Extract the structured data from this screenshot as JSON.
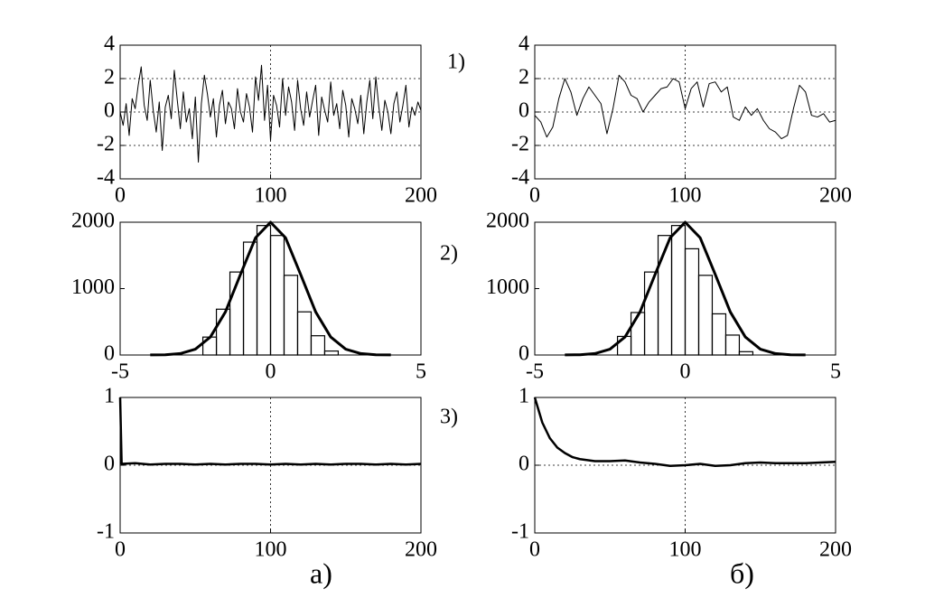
{
  "chart_data": [
    {
      "type": "line",
      "color": "#000000",
      "line_width": 1,
      "grid": true,
      "x": [
        0,
        2,
        4,
        6,
        8,
        10,
        12,
        14,
        16,
        18,
        20,
        22,
        24,
        26,
        28,
        30,
        32,
        34,
        36,
        38,
        40,
        42,
        44,
        46,
        48,
        50,
        52,
        54,
        56,
        58,
        60,
        62,
        64,
        66,
        68,
        70,
        72,
        74,
        76,
        78,
        80,
        82,
        84,
        86,
        88,
        90,
        92,
        94,
        96,
        98,
        100,
        102,
        104,
        106,
        108,
        110,
        112,
        114,
        116,
        118,
        120,
        122,
        124,
        126,
        128,
        130,
        132,
        134,
        136,
        138,
        140,
        142,
        144,
        146,
        148,
        150,
        152,
        154,
        156,
        158,
        160,
        162,
        164,
        166,
        168,
        170,
        172,
        174,
        176,
        178,
        180,
        182,
        184,
        186,
        188,
        190,
        192,
        194,
        196,
        198,
        200
      ],
      "y": [
        0.0,
        -0.8,
        0.5,
        -1.4,
        0.8,
        0.2,
        1.6,
        2.7,
        0.4,
        -0.5,
        1.9,
        0.1,
        -1.2,
        0.6,
        -2.3,
        0.3,
        1.0,
        -0.4,
        2.5,
        0.7,
        -1.0,
        1.2,
        -0.6,
        0.2,
        -1.6,
        0.9,
        -3.0,
        0.5,
        2.2,
        1.1,
        -0.3,
        0.8,
        -1.5,
        0.4,
        1.3,
        -0.7,
        0.6,
        0.2,
        -1.0,
        1.4,
        0.0,
        -0.6,
        1.1,
        0.3,
        -1.2,
        2.1,
        0.7,
        2.8,
        -0.5,
        1.6,
        -1.7,
        1.0,
        0.4,
        -0.9,
        2.0,
        -0.2,
        1.5,
        0.6,
        -1.1,
        1.9,
        0.2,
        -0.8,
        1.2,
        -0.3,
        0.7,
        1.6,
        -1.4,
        0.9,
        0.1,
        -0.6,
        1.8,
        -0.2,
        0.5,
        -1.0,
        1.3,
        0.4,
        -1.5,
        0.8,
        0.2,
        -0.7,
        1.0,
        -1.3,
        0.6,
        1.9,
        -0.4,
        2.1,
        0.3,
        -1.1,
        0.7,
        0.0,
        -1.3,
        0.5,
        1.2,
        -0.6,
        0.4,
        1.6,
        -0.9,
        0.3,
        -0.2,
        0.6,
        0.1
      ],
      "xlim": [
        0,
        200
      ],
      "ylim": [
        -4,
        4
      ],
      "xticks": [
        0,
        100,
        200
      ],
      "yticks": [
        -4,
        -2,
        0,
        2,
        4
      ]
    },
    {
      "type": "line",
      "color": "#000000",
      "line_width": 1,
      "grid": true,
      "x": [
        0,
        4,
        8,
        12,
        16,
        20,
        24,
        28,
        32,
        36,
        40,
        44,
        48,
        52,
        56,
        60,
        64,
        68,
        72,
        76,
        80,
        84,
        88,
        92,
        96,
        100,
        104,
        108,
        112,
        116,
        120,
        124,
        128,
        132,
        136,
        140,
        144,
        148,
        152,
        156,
        160,
        164,
        168,
        172,
        176,
        180,
        184,
        188,
        192,
        196,
        200
      ],
      "y": [
        -0.2,
        -0.6,
        -1.5,
        -0.9,
        0.8,
        2.0,
        1.2,
        -0.2,
        0.8,
        1.5,
        1.0,
        0.5,
        -1.3,
        0.2,
        2.2,
        1.8,
        1.0,
        0.8,
        0.0,
        0.6,
        1.0,
        1.4,
        1.5,
        2.0,
        1.8,
        0.2,
        1.4,
        1.8,
        0.3,
        1.7,
        1.8,
        1.2,
        1.5,
        -0.3,
        -0.5,
        0.3,
        -0.2,
        0.2,
        -0.5,
        -1.0,
        -1.2,
        -1.6,
        -1.4,
        0.2,
        1.6,
        1.2,
        -0.2,
        -0.3,
        -0.1,
        -0.6,
        -0.5
      ],
      "xlim": [
        0,
        200
      ],
      "ylim": [
        -4,
        4
      ],
      "xticks": [
        0,
        100,
        200
      ],
      "yticks": [
        -4,
        -2,
        0,
        2,
        4
      ]
    },
    {
      "type": "histogram",
      "color": "#000000",
      "grid": false,
      "bins": [
        -2.25,
        -1.8,
        -1.35,
        -0.9,
        -0.45,
        0,
        0.45,
        0.9,
        1.35,
        1.8,
        2.25
      ],
      "values": [
        270,
        690,
        1250,
        1700,
        1950,
        1800,
        1200,
        650,
        290,
        60
      ],
      "curve_x": [
        -4,
        -3.5,
        -3,
        -2.5,
        -2,
        -1.5,
        -1,
        -0.5,
        0,
        0.5,
        1,
        1.5,
        2,
        2.5,
        3,
        3.5,
        4
      ],
      "curve_y": [
        1,
        4,
        22,
        88,
        271,
        649,
        1213,
        1765,
        2000,
        1765,
        1213,
        649,
        271,
        88,
        22,
        4,
        1
      ],
      "xlim": [
        -5,
        5
      ],
      "ylim": [
        0,
        2000
      ],
      "xticks": [
        -5,
        0,
        5
      ],
      "yticks": [
        0,
        1000,
        2000
      ]
    },
    {
      "type": "histogram",
      "color": "#000000",
      "grid": false,
      "bins": [
        -2.25,
        -1.8,
        -1.35,
        -0.9,
        -0.45,
        0,
        0.45,
        0.9,
        1.35,
        1.8,
        2.25
      ],
      "values": [
        280,
        640,
        1250,
        1800,
        1950,
        1600,
        1200,
        620,
        300,
        50
      ],
      "curve_x": [
        -4,
        -3.5,
        -3,
        -2.5,
        -2,
        -1.5,
        -1,
        -0.5,
        0,
        0.5,
        1,
        1.5,
        2,
        2.5,
        3,
        3.5,
        4
      ],
      "curve_y": [
        1,
        4,
        22,
        88,
        271,
        649,
        1213,
        1765,
        2000,
        1765,
        1213,
        649,
        271,
        88,
        22,
        4,
        1
      ],
      "xlim": [
        -5,
        5
      ],
      "ylim": [
        0,
        2000
      ],
      "xticks": [
        -5,
        0,
        5
      ],
      "yticks": [
        0,
        1000,
        2000
      ]
    },
    {
      "type": "line",
      "color": "#000000",
      "line_width": 2.5,
      "grid": true,
      "x": [
        0,
        1,
        10,
        20,
        30,
        40,
        50,
        60,
        70,
        80,
        90,
        100,
        110,
        120,
        130,
        140,
        150,
        160,
        170,
        180,
        190,
        200
      ],
      "y": [
        1,
        0.02,
        0.03,
        0.01,
        0.02,
        0.02,
        0.01,
        0.02,
        0.01,
        0.02,
        0.02,
        0.01,
        0.02,
        0.01,
        0.02,
        0.01,
        0.02,
        0.02,
        0.01,
        0.02,
        0.01,
        0.02
      ],
      "xlim": [
        0,
        200
      ],
      "ylim": [
        -1,
        1
      ],
      "xticks": [
        0,
        100,
        200
      ],
      "yticks": [
        -1,
        0,
        1
      ]
    },
    {
      "type": "line",
      "color": "#000000",
      "line_width": 2.5,
      "grid": true,
      "x": [
        0,
        5,
        10,
        15,
        20,
        25,
        30,
        40,
        50,
        60,
        70,
        80,
        90,
        100,
        110,
        120,
        130,
        140,
        150,
        160,
        170,
        180,
        190,
        200
      ],
      "y": [
        1,
        0.63,
        0.4,
        0.26,
        0.18,
        0.12,
        0.09,
        0.06,
        0.06,
        0.07,
        0.04,
        0.02,
        -0.01,
        0.0,
        0.02,
        -0.01,
        0.0,
        0.03,
        0.04,
        0.03,
        0.03,
        0.03,
        0.04,
        0.05
      ],
      "xlim": [
        0,
        200
      ],
      "ylim": [
        -1,
        1
      ],
      "xticks": [
        0,
        100,
        200
      ],
      "yticks": [
        -1,
        0,
        1
      ]
    }
  ],
  "row_labels": [
    "1)",
    "2)",
    "3)"
  ],
  "column_labels": [
    "а)",
    "б)"
  ]
}
